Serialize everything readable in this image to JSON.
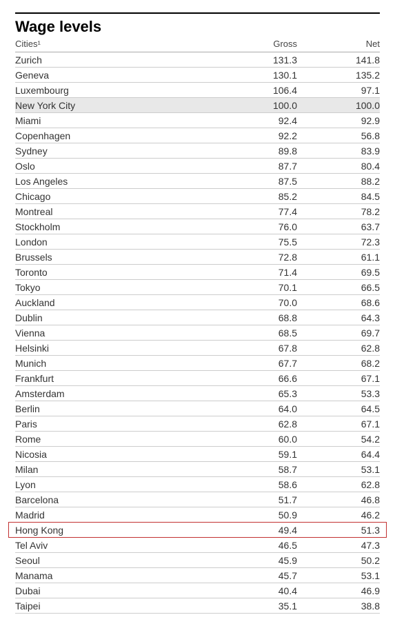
{
  "title": "Wage levels",
  "columns": {
    "city": "Cities¹",
    "gross": "Gross",
    "net": "Net"
  },
  "baseline_city": "New York City",
  "highlight_city": "Hong Kong",
  "baseline_bg": "#e8e8e8",
  "highlight_border": "#c23030",
  "rows": [
    {
      "city": "Zurich",
      "gross": "131.3",
      "net": "141.8"
    },
    {
      "city": "Geneva",
      "gross": "130.1",
      "net": "135.2"
    },
    {
      "city": "Luxembourg",
      "gross": "106.4",
      "net": "97.1"
    },
    {
      "city": "New York City",
      "gross": "100.0",
      "net": "100.0"
    },
    {
      "city": "Miami",
      "gross": "92.4",
      "net": "92.9"
    },
    {
      "city": "Copenhagen",
      "gross": "92.2",
      "net": "56.8"
    },
    {
      "city": "Sydney",
      "gross": "89.8",
      "net": "83.9"
    },
    {
      "city": "Oslo",
      "gross": "87.7",
      "net": "80.4"
    },
    {
      "city": "Los Angeles",
      "gross": "87.5",
      "net": "88.2"
    },
    {
      "city": "Chicago",
      "gross": "85.2",
      "net": "84.5"
    },
    {
      "city": "Montreal",
      "gross": "77.4",
      "net": "78.2"
    },
    {
      "city": "Stockholm",
      "gross": "76.0",
      "net": "63.7"
    },
    {
      "city": "London",
      "gross": "75.5",
      "net": "72.3"
    },
    {
      "city": "Brussels",
      "gross": "72.8",
      "net": "61.1"
    },
    {
      "city": "Toronto",
      "gross": "71.4",
      "net": "69.5"
    },
    {
      "city": "Tokyo",
      "gross": "70.1",
      "net": "66.5"
    },
    {
      "city": "Auckland",
      "gross": "70.0",
      "net": "68.6"
    },
    {
      "city": "Dublin",
      "gross": "68.8",
      "net": "64.3"
    },
    {
      "city": "Vienna",
      "gross": "68.5",
      "net": "69.7"
    },
    {
      "city": "Helsinki",
      "gross": "67.8",
      "net": "62.8"
    },
    {
      "city": "Munich",
      "gross": "67.7",
      "net": "68.2"
    },
    {
      "city": "Frankfurt",
      "gross": "66.6",
      "net": "67.1"
    },
    {
      "city": "Amsterdam",
      "gross": "65.3",
      "net": "53.3"
    },
    {
      "city": "Berlin",
      "gross": "64.0",
      "net": "64.5"
    },
    {
      "city": "Paris",
      "gross": "62.8",
      "net": "67.1"
    },
    {
      "city": "Rome",
      "gross": "60.0",
      "net": "54.2"
    },
    {
      "city": "Nicosia",
      "gross": "59.1",
      "net": "64.4"
    },
    {
      "city": "Milan",
      "gross": "58.7",
      "net": "53.1"
    },
    {
      "city": "Lyon",
      "gross": "58.6",
      "net": "62.8"
    },
    {
      "city": "Barcelona",
      "gross": "51.7",
      "net": "46.8"
    },
    {
      "city": "Madrid",
      "gross": "50.9",
      "net": "46.2"
    },
    {
      "city": "Hong Kong",
      "gross": "49.4",
      "net": "51.3"
    },
    {
      "city": "Tel Aviv",
      "gross": "46.5",
      "net": "47.3"
    },
    {
      "city": "Seoul",
      "gross": "45.9",
      "net": "50.2"
    },
    {
      "city": "Manama",
      "gross": "45.7",
      "net": "53.1"
    },
    {
      "city": "Dubai",
      "gross": "40.4",
      "net": "46.9"
    },
    {
      "city": "Taipei",
      "gross": "35.1",
      "net": "38.8"
    }
  ]
}
